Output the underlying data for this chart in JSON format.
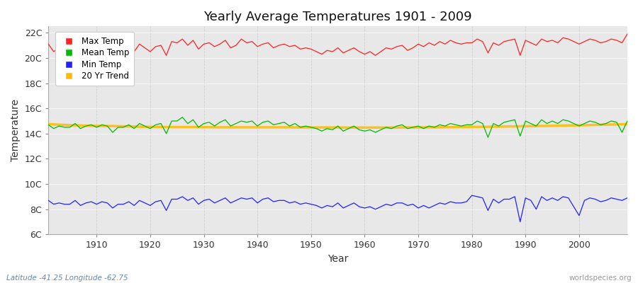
{
  "title": "Yearly Average Temperatures 1901 - 2009",
  "xlabel": "Year",
  "ylabel": "Temperature",
  "years": [
    1901,
    1902,
    1903,
    1904,
    1905,
    1906,
    1907,
    1908,
    1909,
    1910,
    1911,
    1912,
    1913,
    1914,
    1915,
    1916,
    1917,
    1918,
    1919,
    1920,
    1921,
    1922,
    1923,
    1924,
    1925,
    1926,
    1927,
    1928,
    1929,
    1930,
    1931,
    1932,
    1933,
    1934,
    1935,
    1936,
    1937,
    1938,
    1939,
    1940,
    1941,
    1942,
    1943,
    1944,
    1945,
    1946,
    1947,
    1948,
    1949,
    1950,
    1951,
    1952,
    1953,
    1954,
    1955,
    1956,
    1957,
    1958,
    1959,
    1960,
    1961,
    1962,
    1963,
    1964,
    1965,
    1966,
    1967,
    1968,
    1969,
    1970,
    1971,
    1972,
    1973,
    1974,
    1975,
    1976,
    1977,
    1978,
    1979,
    1980,
    1981,
    1982,
    1983,
    1984,
    1985,
    1986,
    1987,
    1988,
    1989,
    1990,
    1991,
    1992,
    1993,
    1994,
    1995,
    1996,
    1997,
    1998,
    1999,
    2000,
    2001,
    2002,
    2003,
    2004,
    2005,
    2006,
    2007,
    2008,
    2009
  ],
  "max_temp": [
    21.1,
    20.5,
    20.8,
    20.7,
    20.6,
    20.9,
    20.4,
    20.7,
    20.9,
    20.6,
    21.0,
    20.8,
    20.3,
    20.7,
    20.6,
    20.8,
    20.5,
    21.1,
    20.8,
    20.5,
    20.9,
    21.0,
    20.2,
    21.3,
    21.2,
    21.5,
    21.0,
    21.4,
    20.7,
    21.1,
    21.2,
    20.9,
    21.1,
    21.4,
    20.8,
    21.0,
    21.5,
    21.2,
    21.3,
    20.9,
    21.1,
    21.2,
    20.8,
    21.0,
    21.1,
    20.9,
    21.0,
    20.7,
    20.8,
    20.7,
    20.5,
    20.3,
    20.6,
    20.5,
    20.8,
    20.4,
    20.6,
    20.8,
    20.5,
    20.3,
    20.5,
    20.2,
    20.5,
    20.8,
    20.7,
    20.9,
    21.0,
    20.6,
    20.8,
    21.1,
    20.9,
    21.2,
    21.0,
    21.3,
    21.1,
    21.4,
    21.2,
    21.1,
    21.2,
    21.2,
    21.5,
    21.3,
    20.4,
    21.2,
    21.0,
    21.3,
    21.4,
    21.5,
    20.2,
    21.4,
    21.2,
    21.0,
    21.5,
    21.3,
    21.4,
    21.2,
    21.6,
    21.5,
    21.3,
    21.1,
    21.3,
    21.5,
    21.4,
    21.2,
    21.3,
    21.5,
    21.4,
    21.2,
    21.9
  ],
  "mean_temp": [
    14.7,
    14.4,
    14.6,
    14.5,
    14.5,
    14.8,
    14.4,
    14.6,
    14.7,
    14.5,
    14.7,
    14.6,
    14.1,
    14.5,
    14.5,
    14.7,
    14.4,
    14.8,
    14.6,
    14.4,
    14.7,
    14.8,
    14.0,
    15.0,
    15.0,
    15.3,
    14.8,
    15.1,
    14.5,
    14.8,
    14.9,
    14.6,
    14.9,
    15.1,
    14.6,
    14.8,
    15.0,
    14.9,
    15.0,
    14.6,
    14.9,
    15.0,
    14.7,
    14.8,
    14.9,
    14.6,
    14.8,
    14.5,
    14.6,
    14.5,
    14.4,
    14.2,
    14.4,
    14.3,
    14.6,
    14.2,
    14.4,
    14.6,
    14.3,
    14.2,
    14.3,
    14.1,
    14.3,
    14.5,
    14.4,
    14.6,
    14.7,
    14.4,
    14.5,
    14.6,
    14.4,
    14.6,
    14.5,
    14.7,
    14.6,
    14.8,
    14.7,
    14.6,
    14.7,
    14.7,
    15.0,
    14.8,
    13.7,
    14.8,
    14.6,
    14.9,
    15.0,
    15.1,
    13.8,
    15.0,
    14.8,
    14.6,
    15.1,
    14.8,
    15.0,
    14.8,
    15.1,
    15.0,
    14.8,
    14.6,
    14.8,
    15.0,
    14.9,
    14.7,
    14.8,
    15.0,
    14.9,
    14.1,
    15.0
  ],
  "min_temp": [
    8.7,
    8.4,
    8.5,
    8.4,
    8.4,
    8.7,
    8.3,
    8.5,
    8.6,
    8.4,
    8.6,
    8.5,
    8.1,
    8.4,
    8.4,
    8.6,
    8.3,
    8.7,
    8.5,
    8.3,
    8.6,
    8.7,
    7.9,
    8.8,
    8.8,
    9.0,
    8.7,
    8.9,
    8.4,
    8.7,
    8.8,
    8.5,
    8.7,
    8.9,
    8.5,
    8.7,
    8.9,
    8.8,
    8.9,
    8.5,
    8.8,
    8.9,
    8.6,
    8.7,
    8.7,
    8.5,
    8.6,
    8.4,
    8.5,
    8.4,
    8.3,
    8.1,
    8.3,
    8.2,
    8.5,
    8.1,
    8.3,
    8.5,
    8.2,
    8.1,
    8.2,
    8.0,
    8.2,
    8.4,
    8.3,
    8.5,
    8.5,
    8.3,
    8.4,
    8.1,
    8.3,
    8.1,
    8.3,
    8.5,
    8.4,
    8.6,
    8.5,
    8.5,
    8.6,
    9.1,
    9.0,
    8.9,
    7.9,
    8.8,
    8.5,
    8.8,
    8.8,
    9.0,
    7.0,
    8.9,
    8.7,
    8.0,
    9.0,
    8.7,
    8.9,
    8.7,
    9.0,
    8.9,
    8.2,
    7.5,
    8.7,
    8.9,
    8.8,
    8.6,
    8.7,
    8.9,
    8.8,
    8.7,
    8.9
  ],
  "trend": [
    14.75,
    14.73,
    14.71,
    14.69,
    14.67,
    14.66,
    14.64,
    14.63,
    14.62,
    14.61,
    14.61,
    14.6,
    14.6,
    14.59,
    14.58,
    14.57,
    14.56,
    14.55,
    14.54,
    14.54,
    14.53,
    14.53,
    14.52,
    14.52,
    14.52,
    14.52,
    14.52,
    14.52,
    14.51,
    14.51,
    14.51,
    14.5,
    14.5,
    14.5,
    14.5,
    14.5,
    14.5,
    14.5,
    14.5,
    14.5,
    14.5,
    14.5,
    14.5,
    14.5,
    14.5,
    14.5,
    14.49,
    14.49,
    14.49,
    14.49,
    14.49,
    14.49,
    14.49,
    14.49,
    14.49,
    14.48,
    14.48,
    14.48,
    14.48,
    14.48,
    14.48,
    14.48,
    14.48,
    14.48,
    14.48,
    14.48,
    14.49,
    14.49,
    14.49,
    14.49,
    14.49,
    14.5,
    14.5,
    14.5,
    14.51,
    14.51,
    14.52,
    14.52,
    14.52,
    14.53,
    14.53,
    14.54,
    14.54,
    14.55,
    14.55,
    14.56,
    14.57,
    14.57,
    14.58,
    14.59,
    14.59,
    14.6,
    14.61,
    14.61,
    14.62,
    14.63,
    14.64,
    14.65,
    14.65,
    14.66,
    14.67,
    14.68,
    14.69,
    14.7,
    14.71,
    14.72,
    14.73,
    14.74,
    14.75
  ],
  "max_color": "#ff2222",
  "mean_color": "#00bb00",
  "min_color": "#2222ff",
  "trend_color": "#ffbb00",
  "fig_bg_color": "#ffffff",
  "plot_bg_color": "#e8e8e8",
  "ylim": [
    6,
    22.5
  ],
  "yticks": [
    6,
    8,
    10,
    12,
    14,
    16,
    18,
    20,
    22
  ],
  "ytick_labels": [
    "6C",
    "8C",
    "10C",
    "12C",
    "14C",
    "16C",
    "18C",
    "20C",
    "22C"
  ],
  "xticks": [
    1910,
    1920,
    1930,
    1940,
    1950,
    1960,
    1970,
    1980,
    1990,
    2000
  ],
  "xlim": [
    1901,
    2009
  ],
  "footer_left": "Latitude -41.25 Longitude -62.75",
  "footer_right": "worldspecies.org",
  "legend_labels": [
    "Max Temp",
    "Mean Temp",
    "Min Temp",
    "20 Yr Trend"
  ]
}
